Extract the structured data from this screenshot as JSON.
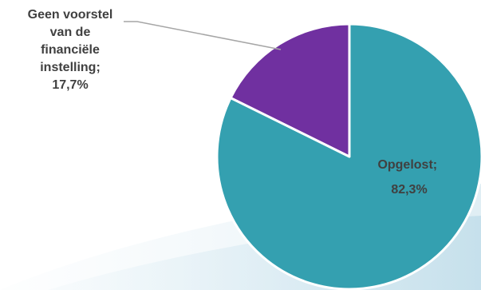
{
  "chart_data": {
    "type": "pie",
    "title": "",
    "slices": [
      {
        "label": "Opgelost",
        "value": 82.3,
        "value_label": "82,3%",
        "color": "#34A0B0"
      },
      {
        "label": "Geen voorstel van de financiële instelling",
        "value": 17.7,
        "value_label": "17,7%",
        "color": "#7030A0"
      }
    ],
    "start_angle": "12 o'clock",
    "direction": "clockwise",
    "legend": "none",
    "label_separator": ";"
  },
  "labels": {
    "outside_lines": [
      "Geen voorstel",
      "van de",
      "financiële",
      "instelling;",
      "17,7%"
    ],
    "inside_lines": [
      "Opgelost;",
      "82,3%"
    ]
  }
}
